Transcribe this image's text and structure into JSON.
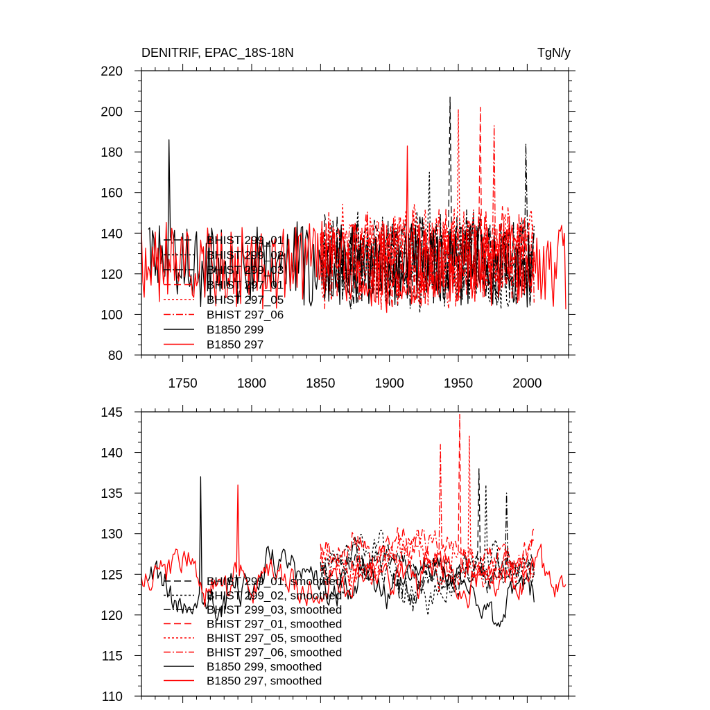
{
  "chart_data": [
    {
      "type": "line",
      "title": "DENITRIF, EPAC_18S-18N",
      "units": "TgN/y",
      "xlim": [
        1720,
        2030
      ],
      "ylim": [
        80,
        220
      ],
      "yticks": [
        80,
        100,
        120,
        140,
        160,
        180,
        200,
        220
      ],
      "xticks": [
        1750,
        1800,
        1850,
        1900,
        1950,
        2000
      ],
      "xticklabels": [
        "1750",
        "1800",
        "1850",
        "1900",
        "1950",
        "2000"
      ],
      "yticklabels": [
        "80",
        "100",
        "120",
        "140",
        "160",
        "180",
        "200",
        "220"
      ],
      "series": [
        {
          "name": "BHIST 299_01",
          "color": "#000000",
          "dash": "long-dash",
          "x_start": 1850,
          "x_end": 2005,
          "mean": 127,
          "amplitude": 16,
          "peak": {
            "year": 1944,
            "value": 207
          }
        },
        {
          "name": "BHIST 299_02",
          "color": "#000000",
          "dash": "short-dash",
          "x_start": 1850,
          "x_end": 2005,
          "mean": 126,
          "amplitude": 16,
          "peak": {
            "year": 1929,
            "value": 170
          }
        },
        {
          "name": "BHIST 299_03",
          "color": "#000000",
          "dash": "dash-dot",
          "x_start": 1850,
          "x_end": 2005,
          "mean": 126,
          "amplitude": 16,
          "peak": {
            "year": 1999,
            "value": 184
          }
        },
        {
          "name": "BHIST 297_01",
          "color": "#ff0000",
          "dash": "long-dash",
          "x_start": 1850,
          "x_end": 2005,
          "mean": 128,
          "amplitude": 17,
          "peak": {
            "year": 1966,
            "value": 202
          }
        },
        {
          "name": "BHIST 297_05",
          "color": "#ff0000",
          "dash": "short-dash",
          "x_start": 1850,
          "x_end": 2005,
          "mean": 129,
          "amplitude": 17,
          "peak": {
            "year": 1950,
            "value": 201
          }
        },
        {
          "name": "BHIST 297_06",
          "color": "#ff0000",
          "dash": "dash-dot",
          "x_start": 1850,
          "x_end": 2005,
          "mean": 128,
          "amplitude": 17,
          "peak": {
            "year": 1976,
            "value": 193
          }
        },
        {
          "name": "B1850 299",
          "color": "#000000",
          "dash": "solid",
          "x_start": 1725,
          "x_end": 2005,
          "mean": 124,
          "amplitude": 15,
          "peak": {
            "year": 1740,
            "value": 186
          }
        },
        {
          "name": "B1850 297",
          "color": "#ff0000",
          "dash": "solid",
          "x_start": 1720,
          "x_end": 2028,
          "mean": 124,
          "amplitude": 15,
          "peak": {
            "year": 1913,
            "value": 183
          }
        }
      ],
      "legend": [
        "BHIST 299_01",
        "BHIST 299_02",
        "BHIST 299_03",
        "BHIST 297_01",
        "BHIST 297_05",
        "BHIST 297_06",
        "B1850 299",
        "B1850 297"
      ],
      "legend_position": "lower-left"
    },
    {
      "type": "line",
      "title": "",
      "xlim": [
        1720,
        2030
      ],
      "ylim": [
        110,
        145
      ],
      "yticks": [
        110,
        115,
        120,
        125,
        130,
        135,
        140,
        145
      ],
      "yticklabels": [
        "110",
        "115",
        "120",
        "125",
        "130",
        "135",
        "140",
        "145"
      ],
      "xticks": [
        1750,
        1800,
        1850,
        1900,
        1950,
        2000
      ],
      "series": [
        {
          "name": "BHIST 299_01, smoothed",
          "color": "#000000",
          "dash": "long-dash",
          "x_start": 1850,
          "x_end": 2005,
          "mean": 126,
          "amplitude": 4.5,
          "peak": {
            "year": 1965,
            "value": 138
          }
        },
        {
          "name": "BHIST 299_02, smoothed",
          "color": "#000000",
          "dash": "short-dash",
          "x_start": 1850,
          "x_end": 2005,
          "mean": 125.5,
          "amplitude": 4.5,
          "peak": {
            "year": 1970,
            "value": 136
          }
        },
        {
          "name": "BHIST 299_03, smoothed",
          "color": "#000000",
          "dash": "dash-dot",
          "x_start": 1850,
          "x_end": 2005,
          "mean": 126,
          "amplitude": 4.5,
          "peak": {
            "year": 1985,
            "value": 135
          }
        },
        {
          "name": "BHIST 297_01, smoothed",
          "color": "#ff0000",
          "dash": "long-dash",
          "x_start": 1850,
          "x_end": 2005,
          "mean": 128,
          "amplitude": 5,
          "peak": {
            "year": 1951,
            "value": 145
          }
        },
        {
          "name": "BHIST 297_05, smoothed",
          "color": "#ff0000",
          "dash": "short-dash",
          "x_start": 1850,
          "x_end": 2005,
          "mean": 127,
          "amplitude": 5,
          "peak": {
            "year": 1958,
            "value": 142
          }
        },
        {
          "name": "BHIST 297_06, smoothed",
          "color": "#ff0000",
          "dash": "dash-dot",
          "x_start": 1850,
          "x_end": 2005,
          "mean": 128,
          "amplitude": 5,
          "peak": {
            "year": 1937,
            "value": 141
          }
        },
        {
          "name": "B1850 299, smoothed",
          "color": "#000000",
          "dash": "solid",
          "x_start": 1725,
          "x_end": 2005,
          "mean": 124,
          "amplitude": 5,
          "peak": {
            "year": 1763,
            "value": 137
          }
        },
        {
          "name": "B1850 297, smoothed",
          "color": "#ff0000",
          "dash": "solid",
          "x_start": 1720,
          "x_end": 2028,
          "mean": 125,
          "amplitude": 5,
          "peak": {
            "year": 1790,
            "value": 136
          }
        }
      ],
      "legend": [
        "BHIST 299_01, smoothed",
        "BHIST 299_02, smoothed",
        "BHIST 299_03, smoothed",
        "BHIST 297_01, smoothed",
        "BHIST 297_05, smoothed",
        "BHIST 297_06, smoothed",
        "B1850 299, smoothed",
        "B1850 297, smoothed"
      ],
      "legend_position": "lower-left"
    }
  ]
}
